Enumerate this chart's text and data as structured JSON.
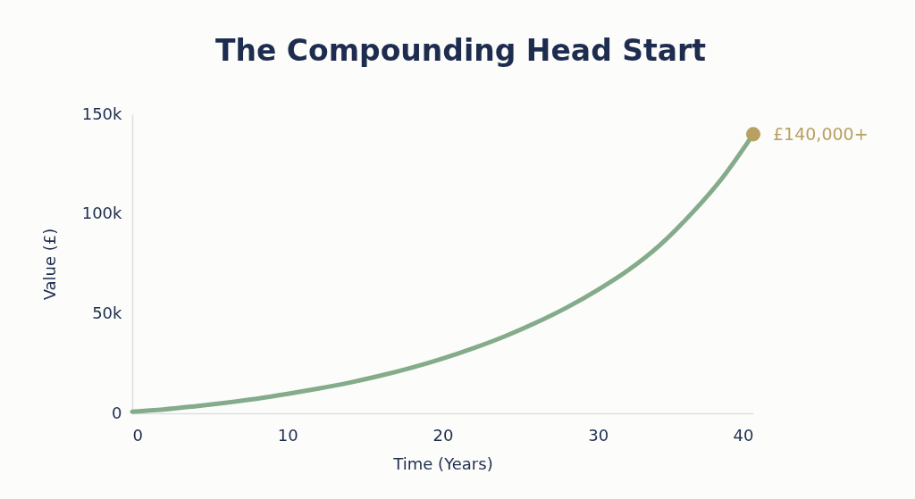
{
  "chart_data": {
    "type": "line",
    "title": "The Compounding Head Start",
    "xlabel": "Time (Years)",
    "ylabel": "Value (£)",
    "x": [
      0,
      2,
      4,
      6,
      8,
      10,
      12,
      14,
      16,
      18,
      20,
      22,
      24,
      26,
      28,
      30,
      32,
      34,
      36,
      38,
      40
    ],
    "series": [
      {
        "color": "#84ab8a",
        "values": [
          800,
          1900,
          3500,
          5300,
          7300,
          9700,
          12400,
          15400,
          18900,
          22900,
          27500,
          32700,
          38600,
          45400,
          53100,
          62000,
          72100,
          84500,
          100000,
          118000,
          140000
        ]
      },
      {
        "type": "scatter",
        "marker": "circle",
        "color": "#b8a062",
        "x": [
          40
        ],
        "values": [
          140000
        ],
        "value_labels": [
          "£140,000+"
        ]
      }
    ],
    "xlim": [
      0,
      40
    ],
    "xticks": [
      0,
      10,
      20,
      30,
      40
    ],
    "ylim": [
      0,
      150000
    ],
    "yticks": [
      0,
      {
        "value": 50000,
        "label": "50k"
      },
      {
        "value": 100000,
        "label": "100k"
      },
      {
        "value": 150000,
        "label": "150k"
      }
    ]
  }
}
